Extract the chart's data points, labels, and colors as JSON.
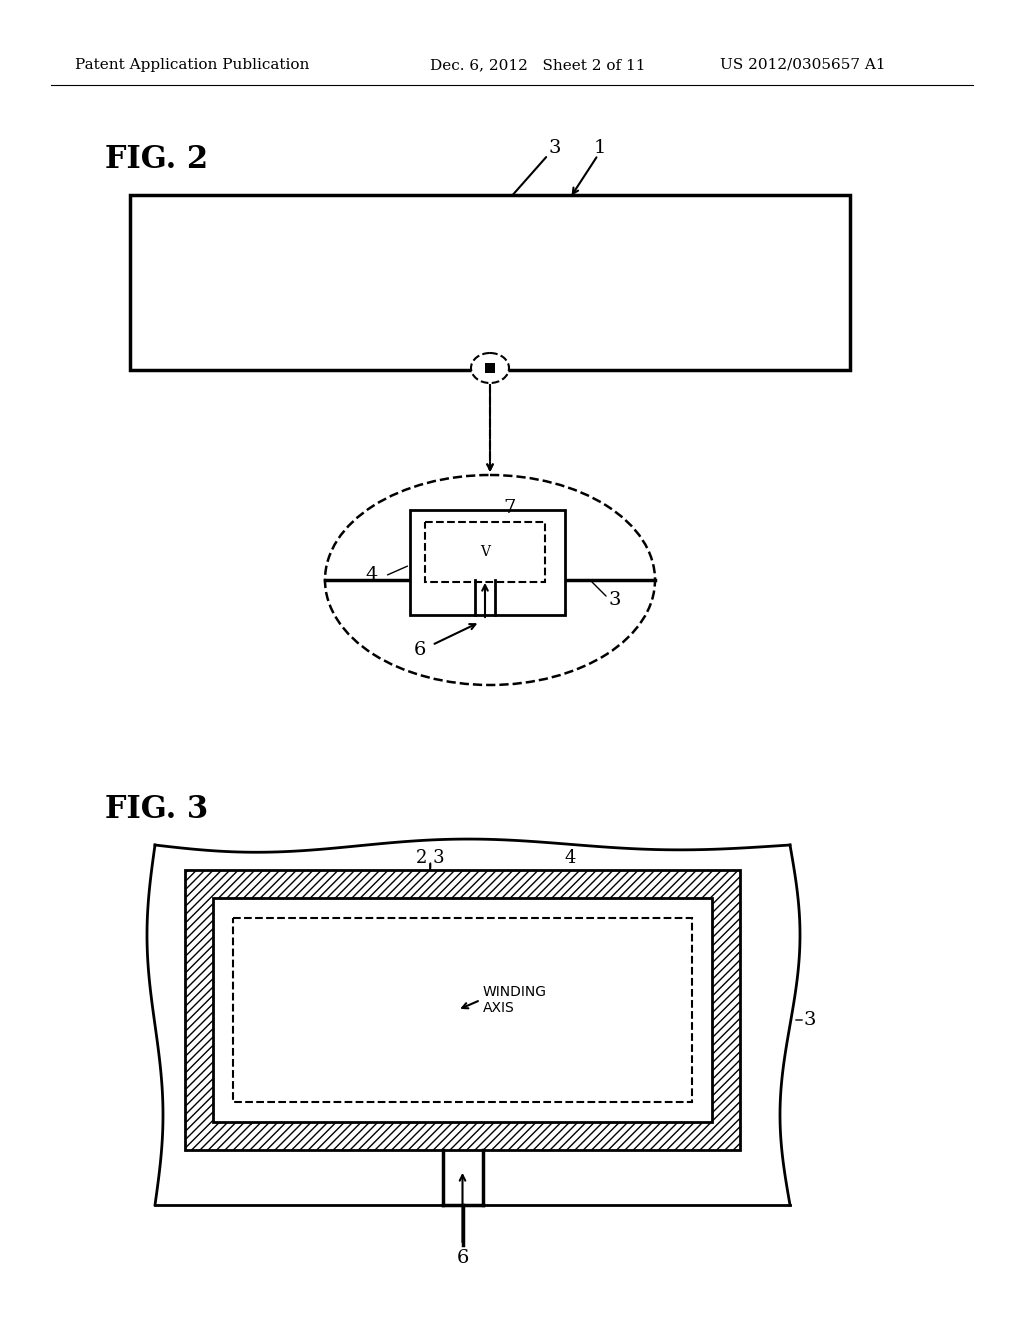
{
  "bg_color": "#ffffff",
  "text_color": "#000000",
  "header_left": "Patent Application Publication",
  "header_mid": "Dec. 6, 2012   Sheet 2 of 11",
  "header_right": "US 2012/0305657 A1",
  "fig2_label": "FIG. 2",
  "fig3_label": "FIG. 3"
}
